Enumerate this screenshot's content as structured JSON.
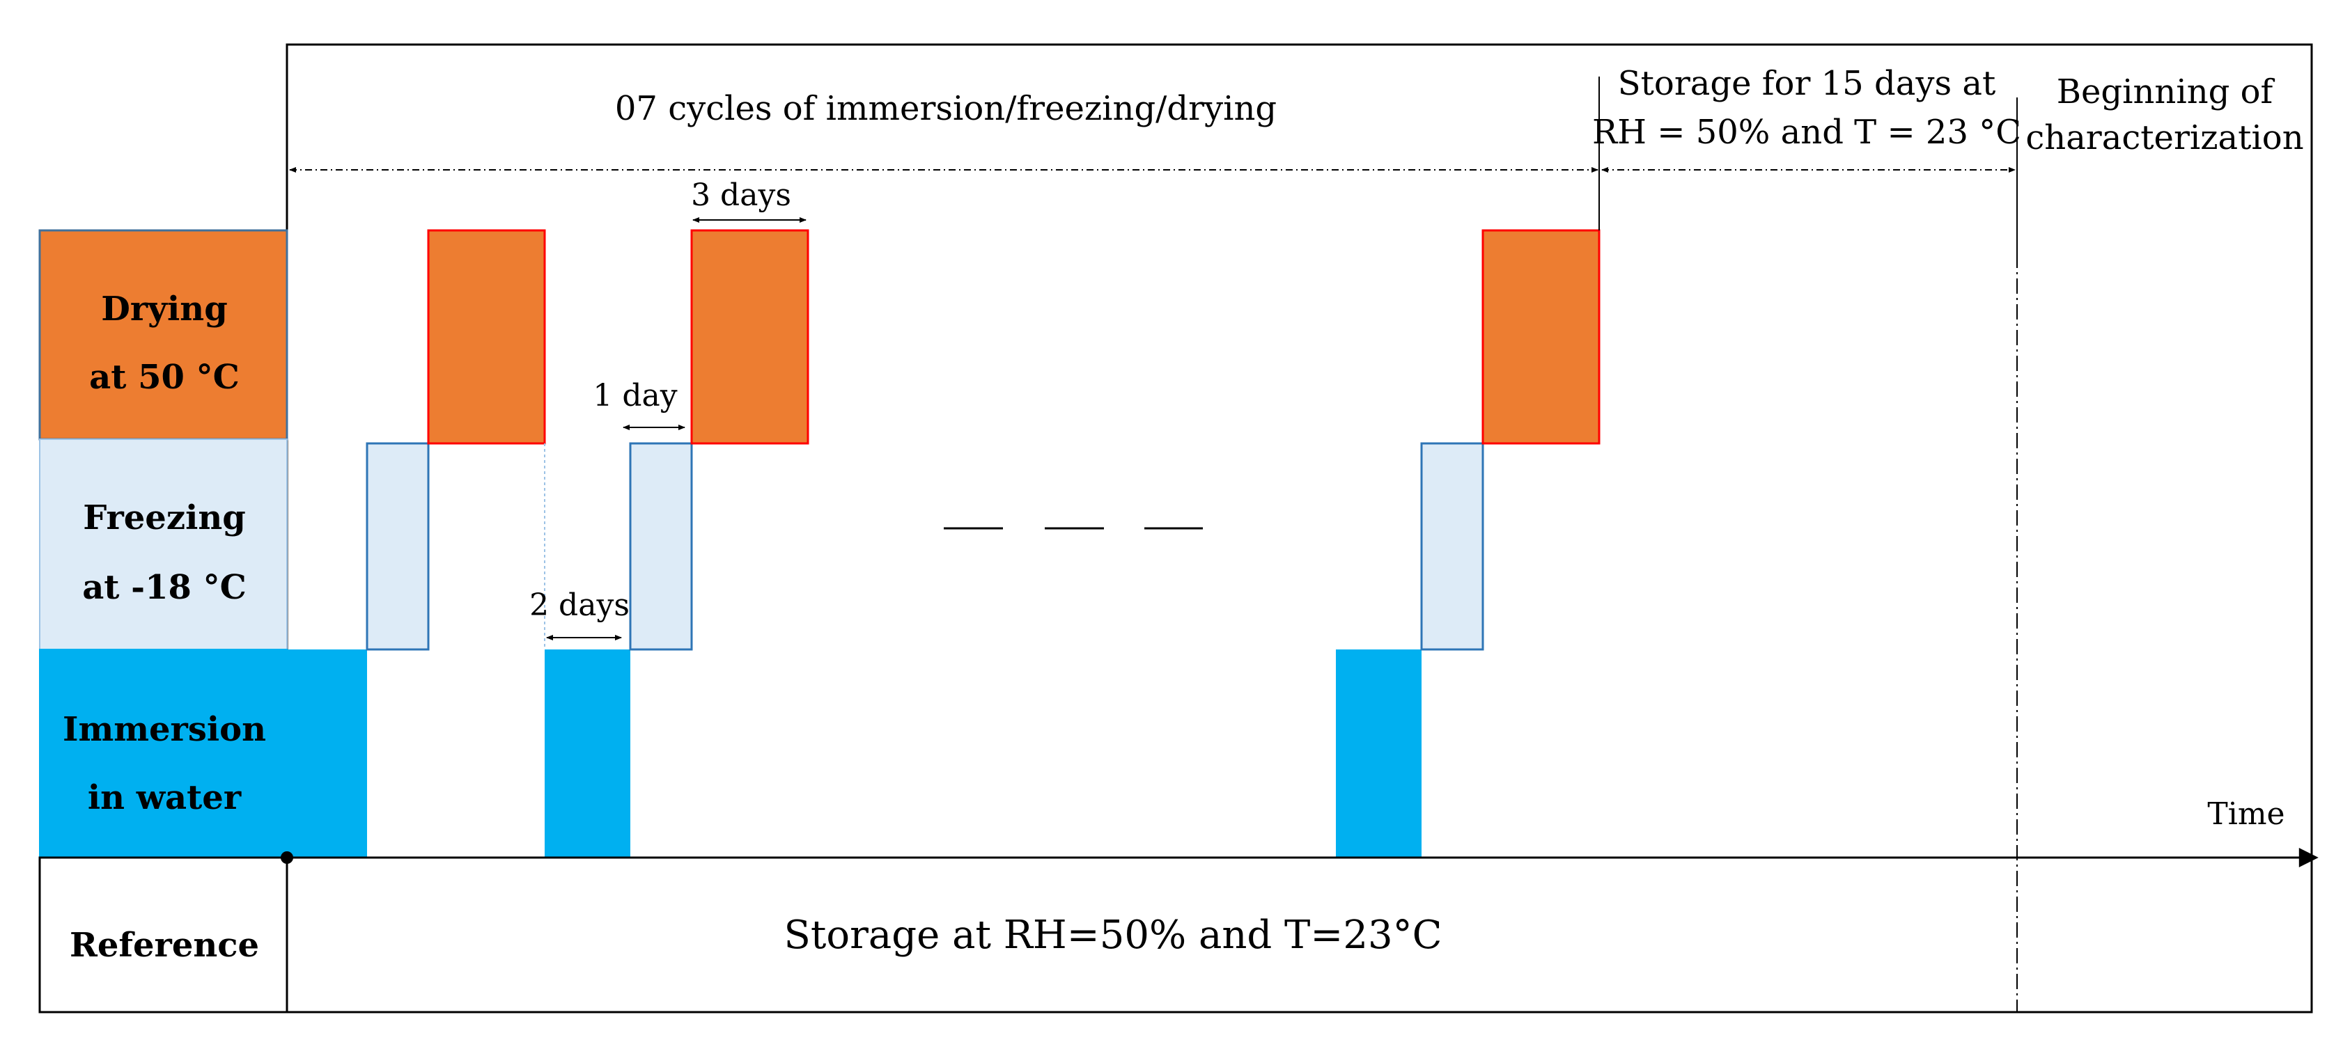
{
  "header": {
    "cycles_label": "07 cycles of immersion/freezing/drying",
    "storage_line1": "Storage for 15 days at",
    "storage_line2": "RH = 50% and T = 23 °C",
    "begin_line1": "Beginning of",
    "begin_line2": "characterization"
  },
  "row_labels": {
    "drying_line1": "Drying",
    "drying_line2": "at 50 °C",
    "freezing_line1": "Freezing",
    "freezing_line2": "at -18 °C",
    "immersion_line1": "Immersion",
    "immersion_line2": "in water",
    "reference": "Reference"
  },
  "annotations": {
    "three_days": "3 days",
    "one_day": "1 day",
    "two_days": "2 days",
    "time_axis": "Time",
    "reference_storage": "Storage at RH=50% and T=23°C"
  },
  "colors": {
    "drying": "#ED7D31",
    "drying_border": "#FF0000",
    "freezing": "#DDEBF7",
    "freezing_border": "#2E75B6",
    "immersion": "#00B0F0",
    "line": "#000000"
  }
}
